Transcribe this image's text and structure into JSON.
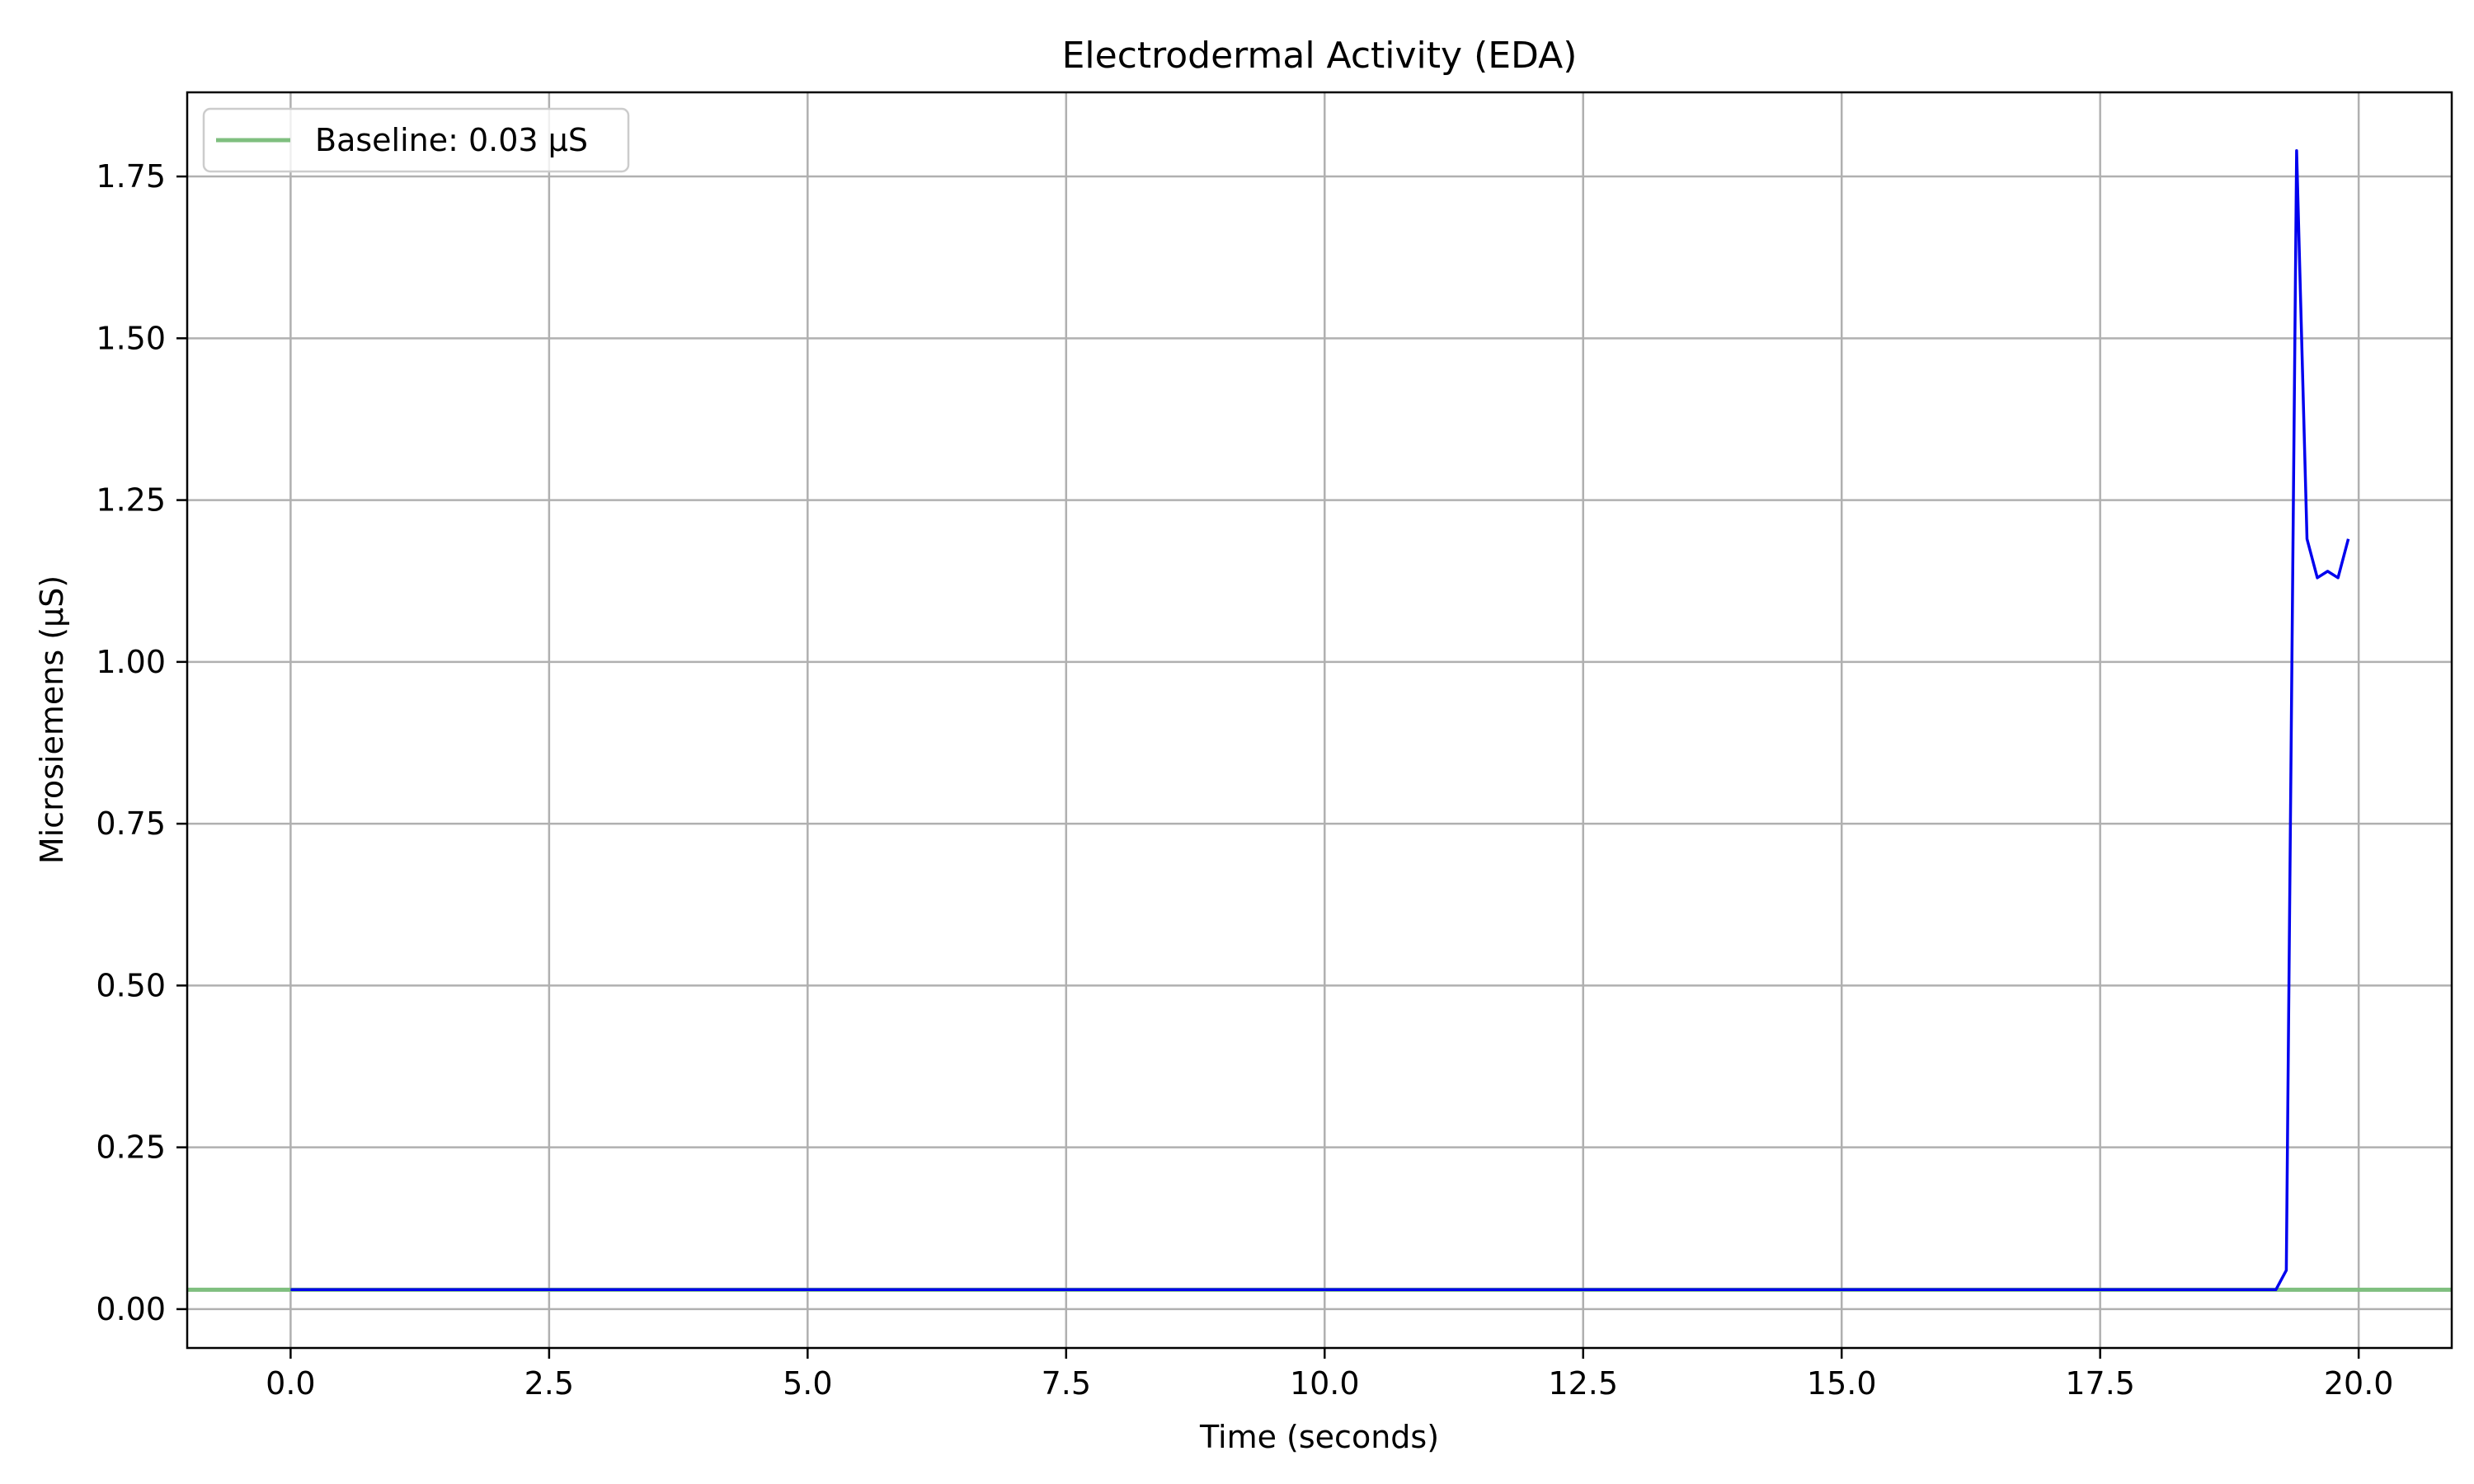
{
  "chart_data": {
    "type": "line",
    "title": "Electrodermal Activity (EDA)",
    "xlabel": "Time (seconds)",
    "ylabel": "Microsiemens (µS)",
    "xlim": [
      -1.0,
      20.9
    ],
    "ylim": [
      -0.06,
      1.88
    ],
    "xticks": [
      0.0,
      2.5,
      5.0,
      7.5,
      10.0,
      12.5,
      15.0,
      17.5,
      20.0
    ],
    "xtick_labels": [
      "0.0",
      "2.5",
      "5.0",
      "7.5",
      "10.0",
      "12.5",
      "15.0",
      "17.5",
      "20.0"
    ],
    "yticks": [
      0.0,
      0.25,
      0.5,
      0.75,
      1.0,
      1.25,
      1.5,
      1.75
    ],
    "ytick_labels": [
      "0.00",
      "0.25",
      "0.50",
      "0.75",
      "1.00",
      "1.25",
      "1.50",
      "1.75"
    ],
    "grid": true,
    "legend_position": "top-left",
    "baseline": {
      "label": "Baseline: 0.03 µS",
      "value": 0.03,
      "color": "#7fbf7f"
    },
    "series": [
      {
        "color": "#0000ee",
        "x": [
          0.0,
          19.2,
          19.3,
          19.4,
          19.5,
          19.6,
          19.7,
          19.8,
          19.9
        ],
        "y": [
          0.03,
          0.03,
          0.06,
          1.79,
          1.19,
          1.13,
          1.14,
          1.13,
          1.19
        ]
      }
    ]
  }
}
